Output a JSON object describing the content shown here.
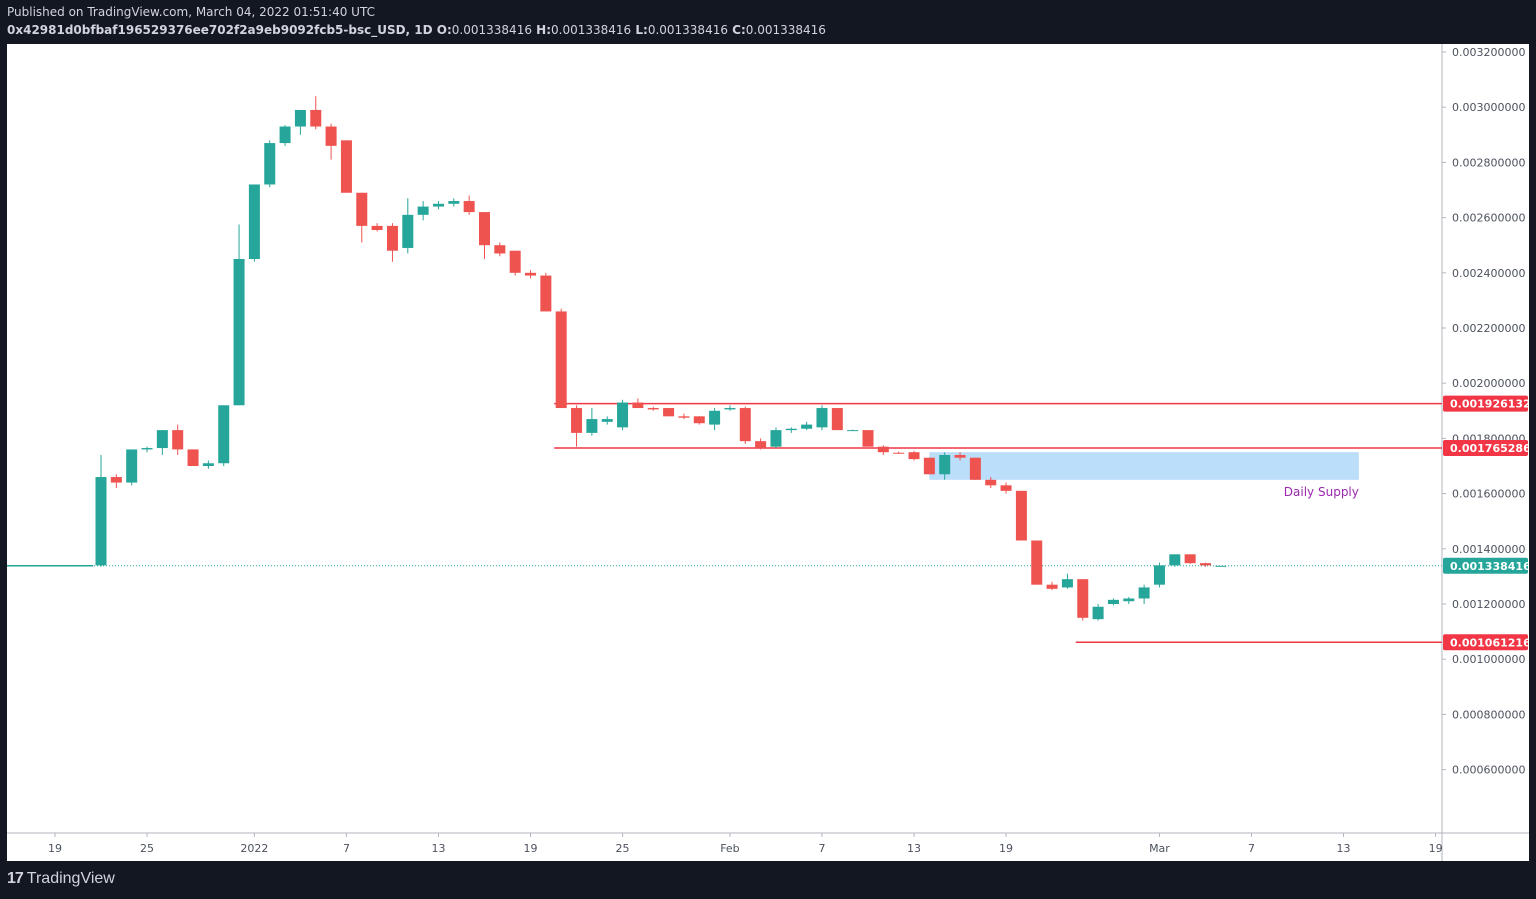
{
  "header": {
    "published": "Published on TradingView.com, March 04, 2022 01:51:40 UTC",
    "symbol": "0x42981d0bfbaf196529376ee702f2a9eb9092fcb5-bsc_USD, 1D",
    "o_label": "O:",
    "o_value": "0.001338416",
    "h_label": "H:",
    "h_value": "0.001338416",
    "l_label": "L:",
    "l_value": "0.001338416",
    "c_label": "C:",
    "c_value": "0.001338416"
  },
  "footer": {
    "logo_mark": "17",
    "brand": "TradingView"
  },
  "colors": {
    "up": "#26a69a",
    "down": "#ef5350",
    "zone": "#bbdefb",
    "zone_text": "#9c27b0",
    "level": "#f23645"
  },
  "chart_data": {
    "type": "candlestick",
    "interval": "1D",
    "y_ticks": [
      "0.003200000",
      "0.003000000",
      "0.002800000",
      "0.002600000",
      "0.002400000",
      "0.002200000",
      "0.002000000",
      "0.001800000",
      "0.001600000",
      "0.001400000",
      "0.001200000",
      "0.001000000",
      "0.000800000",
      "0.000600000"
    ],
    "ylim": [
      0.00047,
      0.00333
    ],
    "x_ticks": [
      {
        "label": "19",
        "i": -3
      },
      {
        "label": "25",
        "i": 3
      },
      {
        "label": "2022",
        "i": 10
      },
      {
        "label": "7",
        "i": 16
      },
      {
        "label": "13",
        "i": 22
      },
      {
        "label": "19",
        "i": 28
      },
      {
        "label": "25",
        "i": 34
      },
      {
        "label": "Feb",
        "i": 41
      },
      {
        "label": "7",
        "i": 47
      },
      {
        "label": "13",
        "i": 53
      },
      {
        "label": "19",
        "i": 59
      },
      {
        "label": "Mar",
        "i": 69
      },
      {
        "label": "7",
        "i": 75
      },
      {
        "label": "13",
        "i": 81
      },
      {
        "label": "19",
        "i": 87
      }
    ],
    "pre_line": {
      "from": -6,
      "to": -0.5,
      "value": 0.001338416
    },
    "candles": [
      {
        "o": 0.00134,
        "h": 0.00174,
        "l": 0.001335,
        "c": 0.00166
      },
      {
        "o": 0.00166,
        "h": 0.00167,
        "l": 0.00162,
        "c": 0.00164
      },
      {
        "o": 0.00164,
        "h": 0.00176,
        "l": 0.00163,
        "c": 0.00176
      },
      {
        "o": 0.00176,
        "h": 0.00177,
        "l": 0.00175,
        "c": 0.001765
      },
      {
        "o": 0.001765,
        "h": 0.00183,
        "l": 0.00174,
        "c": 0.00183
      },
      {
        "o": 0.00183,
        "h": 0.00185,
        "l": 0.00174,
        "c": 0.00176
      },
      {
        "o": 0.00176,
        "h": 0.00176,
        "l": 0.0017,
        "c": 0.0017
      },
      {
        "o": 0.0017,
        "h": 0.00172,
        "l": 0.00169,
        "c": 0.00171
      },
      {
        "o": 0.00171,
        "h": 0.00192,
        "l": 0.0017,
        "c": 0.00192
      },
      {
        "o": 0.00192,
        "h": 0.002575,
        "l": 0.00192,
        "c": 0.00245
      },
      {
        "o": 0.00245,
        "h": 0.00272,
        "l": 0.00244,
        "c": 0.00272
      },
      {
        "o": 0.00272,
        "h": 0.00288,
        "l": 0.00271,
        "c": 0.00287
      },
      {
        "o": 0.00287,
        "h": 0.002935,
        "l": 0.00286,
        "c": 0.00293
      },
      {
        "o": 0.00293,
        "h": 0.00299,
        "l": 0.0029,
        "c": 0.00299
      },
      {
        "o": 0.00299,
        "h": 0.00304,
        "l": 0.00292,
        "c": 0.00293
      },
      {
        "o": 0.00293,
        "h": 0.00294,
        "l": 0.00281,
        "c": 0.00286
      },
      {
        "o": 0.00288,
        "h": 0.00288,
        "l": 0.00269,
        "c": 0.00269
      },
      {
        "o": 0.00269,
        "h": 0.00269,
        "l": 0.00251,
        "c": 0.00257
      },
      {
        "o": 0.00257,
        "h": 0.00258,
        "l": 0.00255,
        "c": 0.002555
      },
      {
        "o": 0.00257,
        "h": 0.00258,
        "l": 0.00244,
        "c": 0.00248
      },
      {
        "o": 0.00249,
        "h": 0.00267,
        "l": 0.00247,
        "c": 0.00261
      },
      {
        "o": 0.00261,
        "h": 0.00266,
        "l": 0.00259,
        "c": 0.00264
      },
      {
        "o": 0.00264,
        "h": 0.00266,
        "l": 0.00263,
        "c": 0.00265
      },
      {
        "o": 0.00265,
        "h": 0.00267,
        "l": 0.00264,
        "c": 0.00266
      },
      {
        "o": 0.00266,
        "h": 0.00268,
        "l": 0.00261,
        "c": 0.00262
      },
      {
        "o": 0.00262,
        "h": 0.00262,
        "l": 0.00245,
        "c": 0.0025
      },
      {
        "o": 0.0025,
        "h": 0.00251,
        "l": 0.00246,
        "c": 0.00247
      },
      {
        "o": 0.00248,
        "h": 0.00248,
        "l": 0.00239,
        "c": 0.0024
      },
      {
        "o": 0.0024,
        "h": 0.00241,
        "l": 0.00238,
        "c": 0.00239
      },
      {
        "o": 0.00239,
        "h": 0.0024,
        "l": 0.00226,
        "c": 0.00226
      },
      {
        "o": 0.00226,
        "h": 0.00227,
        "l": 0.00191,
        "c": 0.00191
      },
      {
        "o": 0.00191,
        "h": 0.00192,
        "l": 0.00177,
        "c": 0.00182
      },
      {
        "o": 0.00182,
        "h": 0.00191,
        "l": 0.00181,
        "c": 0.00187
      },
      {
        "o": 0.00186,
        "h": 0.00188,
        "l": 0.00185,
        "c": 0.00187
      },
      {
        "o": 0.00184,
        "h": 0.00194,
        "l": 0.00183,
        "c": 0.00193
      },
      {
        "o": 0.00193,
        "h": 0.001945,
        "l": 0.00191,
        "c": 0.00191
      },
      {
        "o": 0.00191,
        "h": 0.001915,
        "l": 0.0019,
        "c": 0.001905
      },
      {
        "o": 0.00191,
        "h": 0.00191,
        "l": 0.00188,
        "c": 0.00188
      },
      {
        "o": 0.00188,
        "h": 0.00189,
        "l": 0.00187,
        "c": 0.001875
      },
      {
        "o": 0.00188,
        "h": 0.00188,
        "l": 0.00185,
        "c": 0.001855
      },
      {
        "o": 0.00185,
        "h": 0.00191,
        "l": 0.00183,
        "c": 0.0019
      },
      {
        "o": 0.001905,
        "h": 0.00192,
        "l": 0.0019,
        "c": 0.00191
      },
      {
        "o": 0.00191,
        "h": 0.001915,
        "l": 0.00178,
        "c": 0.00179
      },
      {
        "o": 0.00179,
        "h": 0.0018,
        "l": 0.00176,
        "c": 0.001765
      },
      {
        "o": 0.00177,
        "h": 0.00184,
        "l": 0.001765,
        "c": 0.00183
      },
      {
        "o": 0.00183,
        "h": 0.00184,
        "l": 0.00182,
        "c": 0.001835
      },
      {
        "o": 0.001835,
        "h": 0.00186,
        "l": 0.00183,
        "c": 0.00185
      },
      {
        "o": 0.00184,
        "h": 0.00192,
        "l": 0.00183,
        "c": 0.00191
      },
      {
        "o": 0.00191,
        "h": 0.00191,
        "l": 0.00183,
        "c": 0.00183
      },
      {
        "o": 0.00183,
        "h": 0.001832,
        "l": 0.001828,
        "c": 0.00183
      },
      {
        "o": 0.00183,
        "h": 0.00183,
        "l": 0.00177,
        "c": 0.00177
      },
      {
        "o": 0.00177,
        "h": 0.001775,
        "l": 0.00174,
        "c": 0.00175
      },
      {
        "o": 0.001748,
        "h": 0.001752,
        "l": 0.001744,
        "c": 0.001746
      },
      {
        "o": 0.00175,
        "h": 0.001755,
        "l": 0.00172,
        "c": 0.001725
      },
      {
        "o": 0.00173,
        "h": 0.00173,
        "l": 0.00167,
        "c": 0.00167
      },
      {
        "o": 0.00167,
        "h": 0.00175,
        "l": 0.00165,
        "c": 0.00174
      },
      {
        "o": 0.00174,
        "h": 0.00175,
        "l": 0.00172,
        "c": 0.00173
      },
      {
        "o": 0.00173,
        "h": 0.00173,
        "l": 0.00165,
        "c": 0.00165
      },
      {
        "o": 0.00165,
        "h": 0.00166,
        "l": 0.00162,
        "c": 0.00163
      },
      {
        "o": 0.00163,
        "h": 0.00164,
        "l": 0.0016,
        "c": 0.00161
      },
      {
        "o": 0.00161,
        "h": 0.00161,
        "l": 0.00143,
        "c": 0.00143
      },
      {
        "o": 0.00143,
        "h": 0.00143,
        "l": 0.00127,
        "c": 0.00127
      },
      {
        "o": 0.00127,
        "h": 0.00128,
        "l": 0.00125,
        "c": 0.001255
      },
      {
        "o": 0.00126,
        "h": 0.00131,
        "l": 0.001255,
        "c": 0.00129
      },
      {
        "o": 0.00129,
        "h": 0.00129,
        "l": 0.00114,
        "c": 0.00115
      },
      {
        "o": 0.001145,
        "h": 0.0012,
        "l": 0.00114,
        "c": 0.00119
      },
      {
        "o": 0.0012,
        "h": 0.00122,
        "l": 0.001195,
        "c": 0.001215
      },
      {
        "o": 0.00121,
        "h": 0.001225,
        "l": 0.0012,
        "c": 0.00122
      },
      {
        "o": 0.00122,
        "h": 0.00127,
        "l": 0.0012,
        "c": 0.00126
      },
      {
        "o": 0.00127,
        "h": 0.00135,
        "l": 0.00126,
        "c": 0.00134
      },
      {
        "o": 0.00134,
        "h": 0.00138,
        "l": 0.001335,
        "c": 0.00138
      },
      {
        "o": 0.00138,
        "h": 0.00138,
        "l": 0.001345,
        "c": 0.001348
      },
      {
        "o": 0.001348,
        "h": 0.00135,
        "l": 0.001335,
        "c": 0.00134
      },
      {
        "o": 0.001338416,
        "h": 0.001338416,
        "l": 0.001338416,
        "c": 0.001338416
      }
    ],
    "levels": [
      {
        "value": 0.00192613,
        "label": "0.001926132",
        "from": 30,
        "to": null
      },
      {
        "value": 0.00176529,
        "label": "0.001765286",
        "from": 30,
        "to": null
      },
      {
        "value": 0.00106122,
        "label": "0.001061216",
        "from": 64,
        "to": null
      }
    ],
    "zone": {
      "top": 0.00175,
      "bottom": 0.00165,
      "from": 54,
      "to": 82,
      "label": "Daily Supply"
    },
    "last_price": {
      "value": 0.001338416,
      "label": "0.001338416"
    }
  }
}
